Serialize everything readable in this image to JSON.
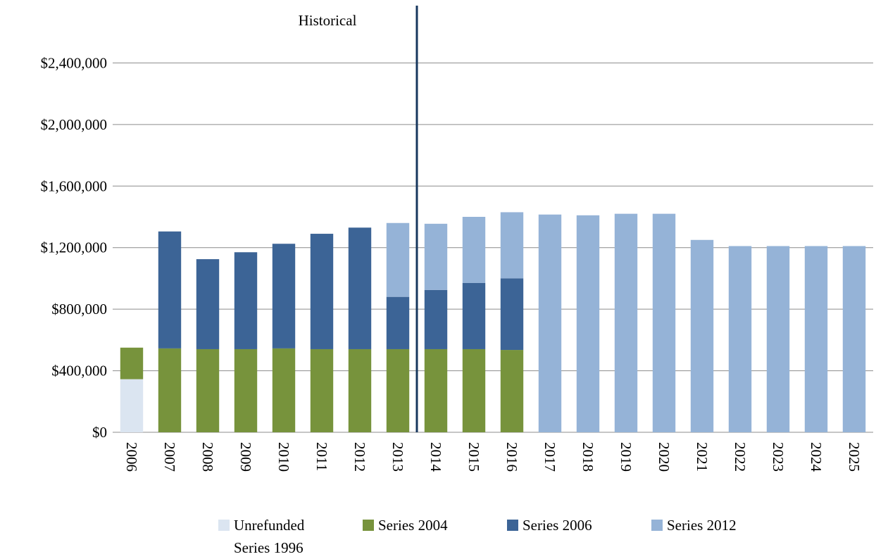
{
  "chart_data": {
    "type": "bar",
    "stacked": true,
    "annotation": "Historical",
    "categories": [
      "2006",
      "2007",
      "2008",
      "2009",
      "2010",
      "2011",
      "2012",
      "2013",
      "2014",
      "2015",
      "2016",
      "2017",
      "2018",
      "2019",
      "2020",
      "2021",
      "2022",
      "2023",
      "2024",
      "2025"
    ],
    "series": [
      {
        "name": "Unrefunded Series 1996",
        "color": "#dbe5f1",
        "values": [
          345000,
          null,
          null,
          null,
          null,
          null,
          null,
          null,
          null,
          null,
          null,
          null,
          null,
          null,
          null,
          null,
          null,
          null,
          null,
          null
        ]
      },
      {
        "name": "Series 2004",
        "color": "#77933c",
        "values": [
          205000,
          545000,
          540000,
          540000,
          545000,
          540000,
          540000,
          540000,
          540000,
          540000,
          535000,
          null,
          null,
          null,
          null,
          null,
          null,
          null,
          null,
          null
        ]
      },
      {
        "name": "Series 2006",
        "color": "#3c6496",
        "values": [
          null,
          760000,
          585000,
          630000,
          680000,
          750000,
          790000,
          340000,
          385000,
          430000,
          465000,
          null,
          null,
          null,
          null,
          null,
          null,
          null,
          null,
          null
        ]
      },
      {
        "name": "Series 2012",
        "color": "#95b3d7",
        "values": [
          null,
          null,
          null,
          null,
          null,
          null,
          null,
          480000,
          430000,
          430000,
          430000,
          1415000,
          1410000,
          1420000,
          1420000,
          1250000,
          1210000,
          1210000,
          1210000,
          1210000
        ]
      }
    ],
    "ylim": [
      0,
      2800000
    ],
    "yticks": [
      {
        "value": 0,
        "label": "$0"
      },
      {
        "value": 400000,
        "label": "$400,000"
      },
      {
        "value": 800000,
        "label": "$800,000"
      },
      {
        "value": 1200000,
        "label": "$1,200,000"
      },
      {
        "value": 1600000,
        "label": "$1,600,000"
      },
      {
        "value": 2000000,
        "label": "$2,000,000"
      },
      {
        "value": 2400000,
        "label": "$2,400,000"
      }
    ],
    "grid": true,
    "divider_after_category": 7,
    "divider_color": "#17375e"
  }
}
